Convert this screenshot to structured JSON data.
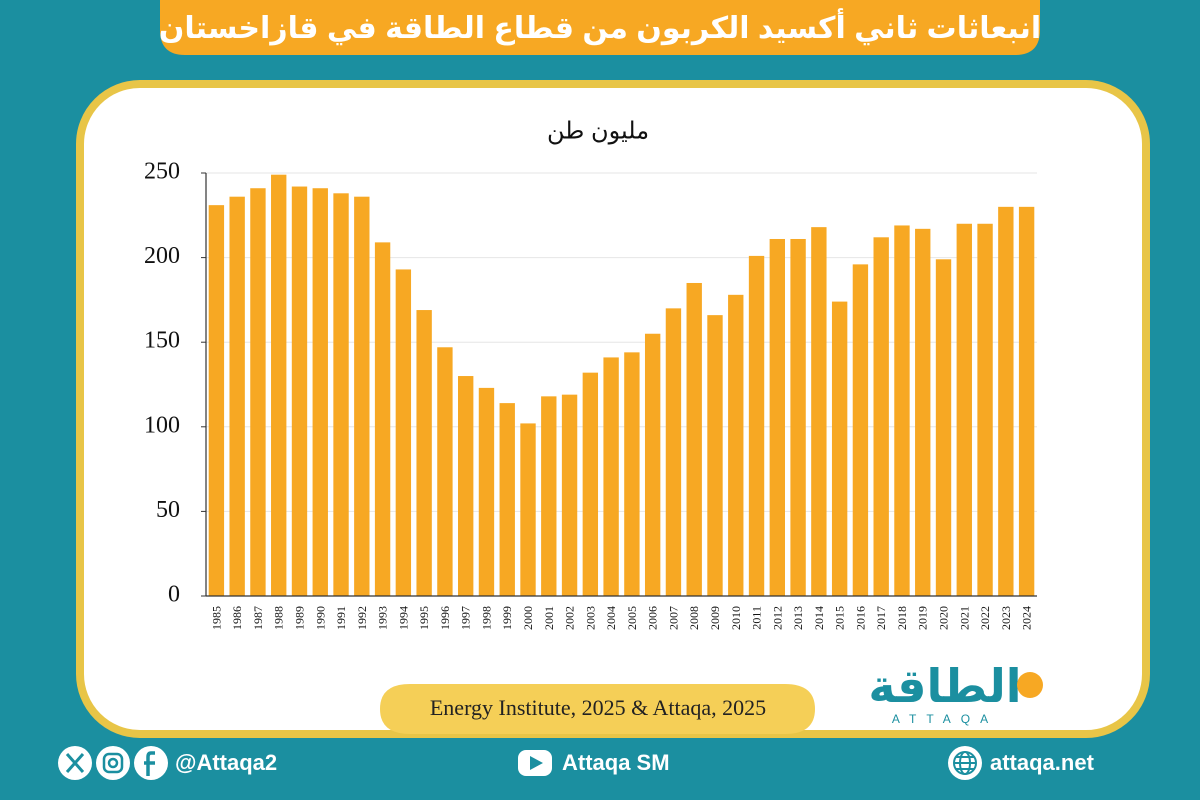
{
  "chart_data": {
    "type": "bar",
    "title": "انبعاثات ثاني أكسيد الكربون من قطاع الطاقة في قازاخستان",
    "y_label": "مليون طن",
    "source": "Energy Institute, 2025 & Attaqa, 2025",
    "categories": [
      "1985",
      "1986",
      "1987",
      "1988",
      "1989",
      "1990",
      "1991",
      "1992",
      "1993",
      "1994",
      "1995",
      "1996",
      "1997",
      "1998",
      "1999",
      "2000",
      "2001",
      "2002",
      "2003",
      "2004",
      "2005",
      "2006",
      "2007",
      "2008",
      "2009",
      "2010",
      "2011",
      "2012",
      "2013",
      "2014",
      "2015",
      "2016",
      "2017",
      "2018",
      "2019",
      "2020",
      "2021",
      "2022",
      "2023",
      "2024"
    ],
    "values": [
      231,
      236,
      241,
      249,
      242,
      241,
      238,
      236,
      209,
      193,
      169,
      147,
      130,
      123,
      114,
      102,
      118,
      119,
      132,
      141,
      144,
      155,
      170,
      185,
      166,
      178,
      201,
      211,
      211,
      218,
      174,
      196,
      212,
      219,
      217,
      199,
      220,
      220,
      230,
      230
    ],
    "color": "#f7a823",
    "ylim": [
      0,
      250
    ],
    "yticks": [
      0,
      50,
      100,
      150,
      200,
      250
    ],
    "grid": true
  },
  "logo": {
    "name": "الطاقة",
    "latin": "ATTAQA"
  },
  "footer": {
    "social": "@Attaqa2",
    "youtube": "Attaqa SM",
    "website": "attaqa.net"
  }
}
